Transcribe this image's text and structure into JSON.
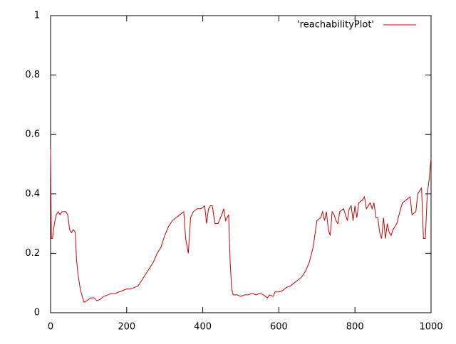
{
  "chart_data": {
    "type": "line",
    "x": [
      0,
      2,
      5,
      10,
      15,
      20,
      25,
      30,
      40,
      45,
      50,
      55,
      60,
      65,
      68,
      72,
      78,
      82,
      88,
      95,
      105,
      115,
      122,
      130,
      140,
      150,
      160,
      170,
      180,
      190,
      200,
      210,
      220,
      230,
      240,
      250,
      260,
      270,
      280,
      290,
      300,
      310,
      320,
      330,
      340,
      350,
      355,
      362,
      368,
      375,
      385,
      395,
      405,
      410,
      415,
      420,
      425,
      432,
      440,
      450,
      455,
      460,
      468,
      472,
      476,
      480,
      490,
      500,
      510,
      520,
      530,
      540,
      550,
      560,
      570,
      575,
      585,
      590,
      600,
      610,
      620,
      630,
      640,
      650,
      660,
      670,
      680,
      690,
      700,
      710,
      715,
      720,
      725,
      730,
      735,
      740,
      745,
      750,
      755,
      760,
      770,
      780,
      785,
      790,
      795,
      800,
      805,
      810,
      820,
      825,
      830,
      840,
      845,
      850,
      855,
      860,
      865,
      870,
      875,
      880,
      885,
      890,
      895,
      900,
      910,
      920,
      925,
      935,
      945,
      950,
      960,
      965,
      975,
      980,
      985,
      990,
      995,
      1000
    ],
    "series": [
      {
        "name": "'reachabilityPlot'",
        "color": "#cc0000",
        "values": [
          0.55,
          0.25,
          0.25,
          0.3,
          0.33,
          0.34,
          0.33,
          0.34,
          0.34,
          0.33,
          0.28,
          0.27,
          0.28,
          0.27,
          0.18,
          0.13,
          0.08,
          0.06,
          0.035,
          0.04,
          0.05,
          0.05,
          0.04,
          0.045,
          0.055,
          0.06,
          0.065,
          0.065,
          0.07,
          0.075,
          0.08,
          0.08,
          0.085,
          0.09,
          0.11,
          0.13,
          0.15,
          0.17,
          0.2,
          0.22,
          0.26,
          0.29,
          0.31,
          0.32,
          0.33,
          0.34,
          0.25,
          0.2,
          0.32,
          0.34,
          0.35,
          0.35,
          0.36,
          0.3,
          0.35,
          0.36,
          0.36,
          0.3,
          0.3,
          0.33,
          0.35,
          0.31,
          0.33,
          0.17,
          0.08,
          0.06,
          0.06,
          0.055,
          0.06,
          0.06,
          0.065,
          0.06,
          0.065,
          0.06,
          0.05,
          0.06,
          0.055,
          0.07,
          0.07,
          0.075,
          0.085,
          0.09,
          0.1,
          0.11,
          0.12,
          0.14,
          0.17,
          0.22,
          0.31,
          0.32,
          0.34,
          0.31,
          0.34,
          0.28,
          0.26,
          0.34,
          0.33,
          0.31,
          0.3,
          0.34,
          0.35,
          0.31,
          0.35,
          0.36,
          0.31,
          0.36,
          0.32,
          0.37,
          0.38,
          0.39,
          0.35,
          0.37,
          0.35,
          0.37,
          0.32,
          0.32,
          0.27,
          0.25,
          0.32,
          0.25,
          0.3,
          0.27,
          0.26,
          0.28,
          0.3,
          0.35,
          0.37,
          0.38,
          0.39,
          0.33,
          0.34,
          0.4,
          0.42,
          0.25,
          0.25,
          0.4,
          0.45,
          0.52
        ]
      }
    ],
    "xlim": [
      0,
      1000
    ],
    "xticks": [
      0,
      200,
      400,
      600,
      800,
      1000
    ],
    "ylim": [
      0,
      1
    ],
    "yticks": [
      0,
      0.2,
      0.4,
      0.6,
      0.8,
      1
    ],
    "legend": "upper right",
    "grid": false
  }
}
